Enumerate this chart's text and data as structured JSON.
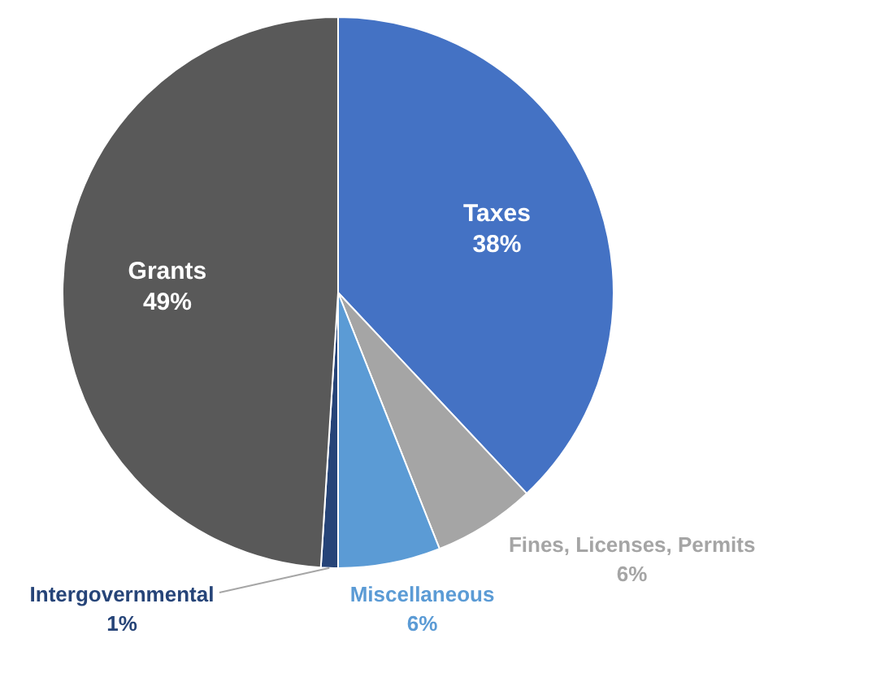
{
  "chart_data": {
    "type": "pie",
    "categories": [
      "Taxes",
      "Fines, Licenses, Permits",
      "Miscellaneous",
      "Intergovernmental",
      "Grants"
    ],
    "values": [
      38,
      6,
      6,
      1,
      49
    ],
    "value_labels": [
      "38%",
      "6%",
      "6%",
      "1%",
      "49%"
    ],
    "colors": [
      "#4472c4",
      "#a5a5a5",
      "#5b9bd5",
      "#264478",
      "#595959"
    ],
    "legend": false
  }
}
